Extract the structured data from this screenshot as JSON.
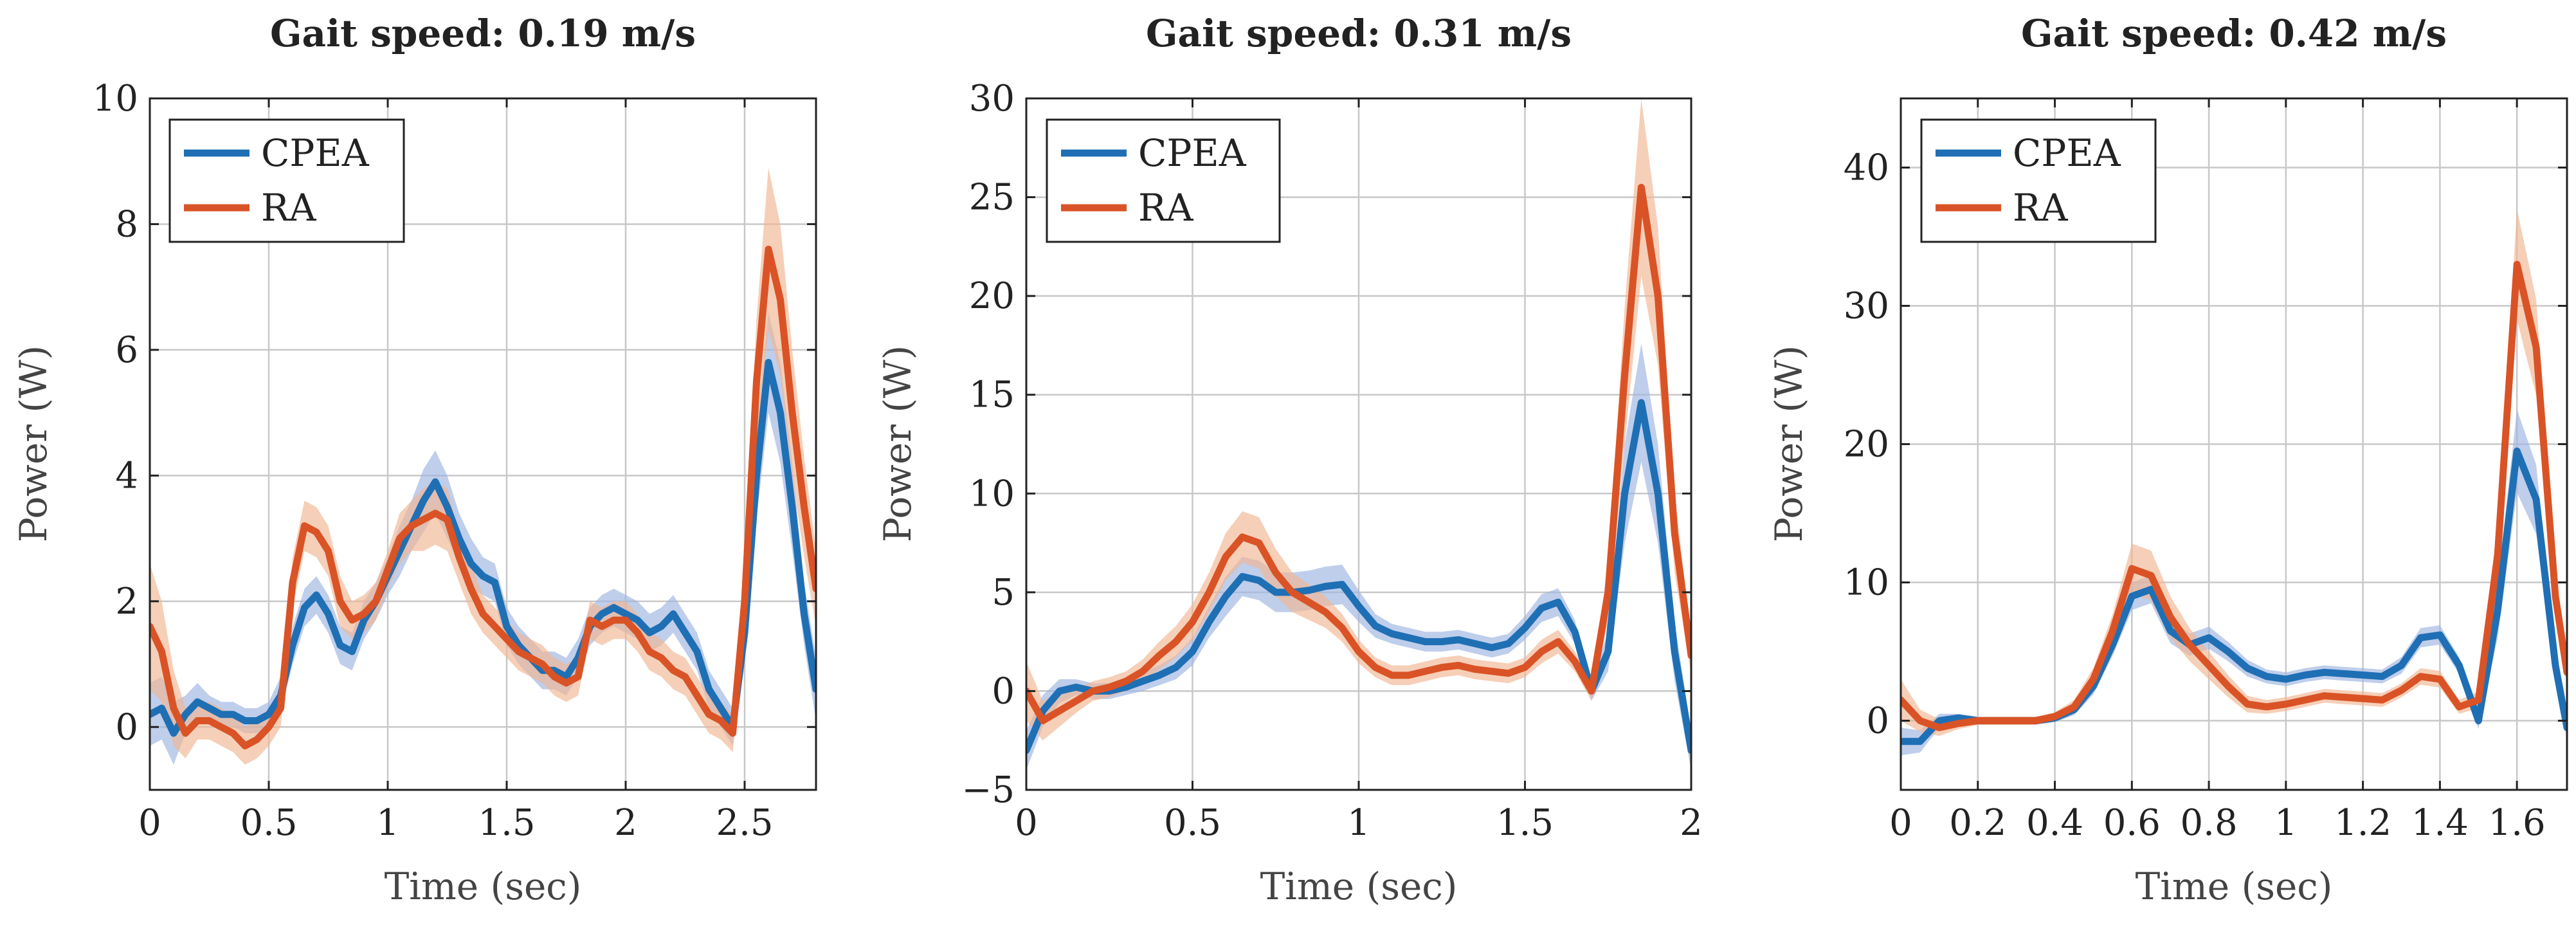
{
  "colors": {
    "CPEA": "#1f6fb4",
    "RA": "#d95326",
    "CPEA_band": "#9db3e0",
    "RA_band": "#f1b692",
    "grid": "#c8c8c8"
  },
  "chart_data": [
    {
      "type": "line",
      "title": "Gait speed: 0.19 m/s",
      "xlabel": "Time (sec)",
      "ylabel": "Power (W)",
      "xlim": [
        0,
        2.8
      ],
      "ylim": [
        -1,
        10
      ],
      "xticks": [
        0,
        0.5,
        1,
        1.5,
        2,
        2.5
      ],
      "xtick_labels": [
        "0",
        "0.5",
        "1",
        "1.5",
        "2",
        "2.5"
      ],
      "yticks": [
        0,
        2,
        4,
        6,
        8,
        10
      ],
      "ytick_labels": [
        "0",
        "2",
        "4",
        "6",
        "8",
        "10"
      ],
      "legend": {
        "position": "top-left",
        "entries": [
          "CPEA",
          "RA"
        ]
      },
      "series": [
        {
          "name": "CPEA",
          "x": [
            0,
            0.05,
            0.1,
            0.15,
            0.2,
            0.25,
            0.3,
            0.35,
            0.4,
            0.45,
            0.5,
            0.55,
            0.6,
            0.65,
            0.7,
            0.75,
            0.8,
            0.85,
            0.9,
            0.95,
            1.0,
            1.05,
            1.1,
            1.15,
            1.2,
            1.25,
            1.3,
            1.35,
            1.4,
            1.45,
            1.5,
            1.55,
            1.6,
            1.65,
            1.7,
            1.75,
            1.8,
            1.85,
            1.9,
            1.95,
            2.0,
            2.05,
            2.1,
            2.15,
            2.2,
            2.25,
            2.3,
            2.35,
            2.4,
            2.45,
            2.5,
            2.55,
            2.6,
            2.65,
            2.7,
            2.75,
            2.8
          ],
          "values": [
            0.2,
            0.3,
            -0.1,
            0.2,
            0.4,
            0.3,
            0.2,
            0.2,
            0.1,
            0.1,
            0.2,
            0.5,
            1.3,
            1.9,
            2.1,
            1.8,
            1.3,
            1.2,
            1.7,
            2.0,
            2.4,
            2.8,
            3.2,
            3.6,
            3.9,
            3.5,
            3.0,
            2.6,
            2.4,
            2.3,
            1.6,
            1.3,
            1.1,
            0.9,
            0.9,
            0.8,
            1.1,
            1.6,
            1.8,
            1.9,
            1.8,
            1.7,
            1.5,
            1.6,
            1.8,
            1.5,
            1.2,
            0.6,
            0.3,
            0.0,
            1.5,
            4.0,
            5.8,
            5.0,
            3.5,
            1.8,
            0.6
          ],
          "band": [
            0.5,
            0.5,
            0.5,
            0.3,
            0.3,
            0.2,
            0.2,
            0.2,
            0.2,
            0.2,
            0.2,
            0.3,
            0.3,
            0.3,
            0.3,
            0.3,
            0.3,
            0.3,
            0.3,
            0.3,
            0.3,
            0.4,
            0.4,
            0.5,
            0.5,
            0.5,
            0.4,
            0.4,
            0.3,
            0.3,
            0.3,
            0.3,
            0.3,
            0.3,
            0.3,
            0.3,
            0.3,
            0.3,
            0.3,
            0.3,
            0.3,
            0.3,
            0.3,
            0.3,
            0.3,
            0.3,
            0.3,
            0.3,
            0.3,
            0.3,
            0.5,
            0.7,
            0.8,
            0.8,
            0.7,
            0.5,
            0.5
          ]
        },
        {
          "name": "RA",
          "x": [
            0,
            0.05,
            0.1,
            0.15,
            0.2,
            0.25,
            0.3,
            0.35,
            0.4,
            0.45,
            0.5,
            0.55,
            0.6,
            0.65,
            0.7,
            0.75,
            0.8,
            0.85,
            0.9,
            0.95,
            1.0,
            1.05,
            1.1,
            1.15,
            1.2,
            1.25,
            1.3,
            1.35,
            1.4,
            1.45,
            1.5,
            1.55,
            1.6,
            1.65,
            1.7,
            1.75,
            1.8,
            1.85,
            1.9,
            1.95,
            2.0,
            2.05,
            2.1,
            2.15,
            2.2,
            2.25,
            2.3,
            2.35,
            2.4,
            2.45,
            2.5,
            2.55,
            2.6,
            2.65,
            2.7,
            2.75,
            2.8
          ],
          "values": [
            1.6,
            1.2,
            0.3,
            -0.1,
            0.1,
            0.1,
            0.0,
            -0.1,
            -0.3,
            -0.2,
            0.0,
            0.3,
            2.3,
            3.2,
            3.1,
            2.8,
            2.0,
            1.7,
            1.8,
            2.0,
            2.5,
            3.0,
            3.2,
            3.3,
            3.4,
            3.3,
            2.7,
            2.2,
            1.8,
            1.6,
            1.4,
            1.2,
            1.1,
            1.0,
            0.8,
            0.7,
            0.8,
            1.7,
            1.6,
            1.7,
            1.7,
            1.5,
            1.2,
            1.1,
            0.9,
            0.8,
            0.5,
            0.2,
            0.1,
            -0.1,
            2.0,
            5.5,
            7.6,
            6.8,
            5.0,
            3.5,
            2.2
          ],
          "band": [
            1.0,
            0.8,
            0.6,
            0.4,
            0.3,
            0.3,
            0.3,
            0.3,
            0.3,
            0.3,
            0.3,
            0.3,
            0.4,
            0.4,
            0.4,
            0.4,
            0.4,
            0.3,
            0.3,
            0.3,
            0.3,
            0.4,
            0.4,
            0.5,
            0.5,
            0.5,
            0.4,
            0.4,
            0.3,
            0.3,
            0.3,
            0.3,
            0.3,
            0.3,
            0.3,
            0.3,
            0.3,
            0.3,
            0.3,
            0.3,
            0.3,
            0.3,
            0.3,
            0.3,
            0.3,
            0.3,
            0.3,
            0.3,
            0.3,
            0.3,
            0.6,
            1.0,
            1.3,
            1.2,
            1.0,
            0.8,
            0.6
          ]
        }
      ]
    },
    {
      "type": "line",
      "title": "Gait speed: 0.31 m/s",
      "xlabel": "Time (sec)",
      "ylabel": "Power (W)",
      "xlim": [
        0,
        2
      ],
      "ylim": [
        -5,
        30
      ],
      "xticks": [
        0,
        0.5,
        1,
        1.5,
        2
      ],
      "xtick_labels": [
        "0",
        "0.5",
        "1",
        "1.5",
        "2"
      ],
      "yticks": [
        -5,
        0,
        5,
        10,
        15,
        20,
        25,
        30
      ],
      "ytick_labels": [
        "−5",
        "0",
        "5",
        "10",
        "15",
        "20",
        "25",
        "30"
      ],
      "legend": {
        "position": "top-left",
        "entries": [
          "CPEA",
          "RA"
        ]
      },
      "series": [
        {
          "name": "CPEA",
          "x": [
            0,
            0.05,
            0.1,
            0.15,
            0.2,
            0.25,
            0.3,
            0.35,
            0.4,
            0.45,
            0.5,
            0.55,
            0.6,
            0.65,
            0.7,
            0.75,
            0.8,
            0.85,
            0.9,
            0.95,
            1.0,
            1.05,
            1.1,
            1.15,
            1.2,
            1.25,
            1.3,
            1.35,
            1.4,
            1.45,
            1.5,
            1.55,
            1.6,
            1.65,
            1.7,
            1.75,
            1.8,
            1.85,
            1.9,
            1.95,
            2.0
          ],
          "values": [
            -3.0,
            -1.0,
            0.0,
            0.2,
            0.0,
            0.0,
            0.2,
            0.5,
            0.8,
            1.2,
            2.0,
            3.5,
            4.8,
            5.8,
            5.6,
            5.0,
            5.0,
            5.1,
            5.3,
            5.4,
            4.3,
            3.3,
            2.9,
            2.7,
            2.5,
            2.5,
            2.6,
            2.4,
            2.2,
            2.4,
            3.2,
            4.2,
            4.5,
            3.0,
            0.0,
            2.0,
            10.0,
            14.6,
            10.0,
            2.0,
            -3.0
          ],
          "band": [
            1.0,
            0.8,
            0.6,
            0.4,
            0.4,
            0.4,
            0.4,
            0.5,
            0.5,
            0.6,
            0.7,
            0.8,
            1.0,
            1.0,
            1.0,
            1.0,
            1.0,
            1.0,
            1.0,
            1.0,
            0.8,
            0.6,
            0.5,
            0.5,
            0.5,
            0.5,
            0.5,
            0.5,
            0.5,
            0.5,
            0.6,
            0.7,
            0.7,
            0.6,
            0.5,
            1.0,
            2.5,
            3.0,
            2.5,
            1.5,
            1.0
          ]
        },
        {
          "name": "RA",
          "x": [
            0,
            0.05,
            0.1,
            0.15,
            0.2,
            0.25,
            0.3,
            0.35,
            0.4,
            0.45,
            0.5,
            0.55,
            0.6,
            0.65,
            0.7,
            0.75,
            0.8,
            0.85,
            0.9,
            0.95,
            1.0,
            1.05,
            1.1,
            1.15,
            1.2,
            1.25,
            1.3,
            1.35,
            1.4,
            1.45,
            1.5,
            1.55,
            1.6,
            1.65,
            1.7,
            1.75,
            1.8,
            1.85,
            1.9,
            1.95,
            2.0
          ],
          "values": [
            0.0,
            -1.5,
            -1.0,
            -0.5,
            0.0,
            0.2,
            0.5,
            1.0,
            1.8,
            2.5,
            3.5,
            5.0,
            6.8,
            7.8,
            7.5,
            6.0,
            5.0,
            4.5,
            4.0,
            3.2,
            2.0,
            1.2,
            0.8,
            0.8,
            1.0,
            1.2,
            1.3,
            1.1,
            1.0,
            0.9,
            1.2,
            2.0,
            2.5,
            1.5,
            0.0,
            5.0,
            16.0,
            25.5,
            20.0,
            8.0,
            1.8
          ],
          "band": [
            1.5,
            1.0,
            0.8,
            0.6,
            0.5,
            0.5,
            0.5,
            0.6,
            0.7,
            0.8,
            0.9,
            1.0,
            1.2,
            1.3,
            1.3,
            1.2,
            1.0,
            0.9,
            0.8,
            0.7,
            0.6,
            0.5,
            0.5,
            0.5,
            0.5,
            0.5,
            0.5,
            0.5,
            0.5,
            0.5,
            0.5,
            0.6,
            0.6,
            0.5,
            0.5,
            1.5,
            3.5,
            4.5,
            3.5,
            2.0,
            1.0
          ]
        }
      ]
    },
    {
      "type": "line",
      "title": "Gait speed: 0.42 m/s",
      "xlabel": "Time (sec)",
      "ylabel": "Power (W)",
      "xlim": [
        0,
        1.73
      ],
      "ylim": [
        -5,
        45
      ],
      "xticks": [
        0,
        0.2,
        0.4,
        0.6,
        0.8,
        1,
        1.2,
        1.4,
        1.6
      ],
      "xtick_labels": [
        "0",
        "0.2",
        "0.4",
        "0.6",
        "0.8",
        "1",
        "1.2",
        "1.4",
        "1.6"
      ],
      "yticks": [
        0,
        10,
        20,
        30,
        40
      ],
      "ytick_labels": [
        "0",
        "10",
        "20",
        "30",
        "40"
      ],
      "legend": {
        "position": "top-left",
        "entries": [
          "CPEA",
          "RA"
        ]
      },
      "series": [
        {
          "name": "CPEA",
          "x": [
            0,
            0.05,
            0.1,
            0.15,
            0.2,
            0.25,
            0.3,
            0.35,
            0.4,
            0.45,
            0.5,
            0.55,
            0.6,
            0.65,
            0.7,
            0.75,
            0.8,
            0.85,
            0.9,
            0.95,
            1.0,
            1.05,
            1.1,
            1.15,
            1.2,
            1.25,
            1.3,
            1.35,
            1.4,
            1.45,
            1.5,
            1.55,
            1.6,
            1.65,
            1.7,
            1.73
          ],
          "values": [
            -1.5,
            -1.5,
            0.0,
            0.2,
            0.0,
            0.0,
            0.0,
            0.0,
            0.2,
            0.8,
            2.5,
            5.5,
            9.0,
            9.5,
            6.5,
            5.5,
            6.0,
            5.0,
            3.8,
            3.2,
            3.0,
            3.3,
            3.5,
            3.4,
            3.3,
            3.2,
            4.0,
            6.0,
            6.2,
            4.0,
            0.0,
            8.0,
            19.5,
            16.0,
            4.0,
            -0.5
          ],
          "band": [
            1.0,
            0.8,
            0.5,
            0.3,
            0.3,
            0.3,
            0.3,
            0.3,
            0.3,
            0.4,
            0.6,
            0.8,
            1.0,
            1.0,
            0.9,
            0.8,
            0.8,
            0.7,
            0.6,
            0.5,
            0.5,
            0.5,
            0.5,
            0.5,
            0.5,
            0.5,
            0.6,
            0.7,
            0.7,
            0.6,
            0.6,
            2.0,
            3.0,
            2.5,
            1.0,
            0.8
          ]
        },
        {
          "name": "RA",
          "x": [
            0,
            0.05,
            0.1,
            0.15,
            0.2,
            0.25,
            0.3,
            0.35,
            0.4,
            0.45,
            0.5,
            0.55,
            0.6,
            0.65,
            0.7,
            0.75,
            0.8,
            0.85,
            0.9,
            0.95,
            1.0,
            1.05,
            1.1,
            1.15,
            1.2,
            1.25,
            1.3,
            1.35,
            1.4,
            1.45,
            1.5,
            1.55,
            1.6,
            1.65,
            1.7,
            1.73
          ],
          "values": [
            1.5,
            0.0,
            -0.5,
            -0.2,
            0.0,
            0.0,
            0.0,
            0.0,
            0.3,
            1.0,
            3.0,
            6.5,
            11.0,
            10.5,
            7.5,
            5.5,
            4.0,
            2.5,
            1.2,
            1.0,
            1.2,
            1.5,
            1.8,
            1.7,
            1.6,
            1.5,
            2.2,
            3.2,
            3.0,
            1.0,
            1.5,
            12.0,
            33.0,
            27.0,
            9.0,
            3.5
          ],
          "band": [
            1.5,
            0.8,
            0.6,
            0.4,
            0.3,
            0.3,
            0.3,
            0.3,
            0.3,
            0.5,
            0.8,
            1.2,
            1.8,
            1.8,
            1.5,
            1.2,
            1.0,
            0.8,
            0.6,
            0.5,
            0.5,
            0.5,
            0.5,
            0.5,
            0.5,
            0.5,
            0.5,
            0.6,
            0.6,
            0.5,
            0.6,
            2.5,
            4.0,
            3.5,
            1.5,
            1.0
          ]
        }
      ]
    }
  ]
}
